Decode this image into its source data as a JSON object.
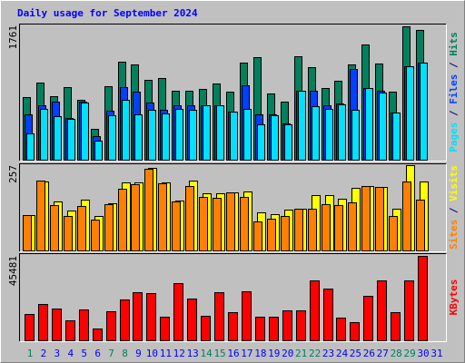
{
  "chart_data": [
    {
      "type": "bar",
      "title": "Daily usage for September 2024",
      "categories": [
        "1",
        "2",
        "3",
        "4",
        "5",
        "6",
        "7",
        "8",
        "9",
        "10",
        "11",
        "12",
        "13",
        "14",
        "15",
        "16",
        "17",
        "18",
        "19",
        "20",
        "21",
        "22",
        "23",
        "24",
        "25",
        "26",
        "27",
        "28",
        "29",
        "30",
        "31"
      ],
      "category_colors": [
        "#00805c",
        "#0000ff",
        "#0000ff",
        "#0000ff",
        "#0000ff",
        "#0000ff",
        "#00805c",
        "#00805c",
        "#0000ff",
        "#0000ff",
        "#0000ff",
        "#0000ff",
        "#0000ff",
        "#00805c",
        "#00805c",
        "#0000ff",
        "#0000ff",
        "#0000ff",
        "#0000ff",
        "#0000ff",
        "#00805c",
        "#00805c",
        "#0000ff",
        "#0000ff",
        "#0000ff",
        "#0000ff",
        "#0000ff",
        "#00805c",
        "#00805c",
        "#0000ff",
        "#0000ff"
      ],
      "legend_separator": "/",
      "ylim": [
        0,
        1761
      ],
      "yticks": [
        1761
      ],
      "series": [
        {
          "name": "Hits",
          "color": "#00805c",
          "values": [
            821,
            1011,
            833,
            952,
            780,
            404,
            964,
            1285,
            1250,
            1047,
            1071,
            904,
            904,
            928,
            1000,
            892,
            1273,
            1345,
            869,
            762,
            1357,
            1214,
            940,
            1035,
            1250,
            1511,
            1261,
            892,
            1749,
            1702,
            null
          ]
        },
        {
          "name": "Files",
          "color": "#0040ff",
          "values": [
            595,
            714,
            762,
            547,
            760,
            310,
            642,
            952,
            892,
            750,
            654,
            714,
            714,
            714,
            714,
            630,
            976,
            595,
            595,
            476,
            904,
            904,
            714,
            738,
            1190,
            940,
            904,
            619,
            1226,
            1273,
            null
          ]
        },
        {
          "name": "Pages",
          "color": "#00e0ff",
          "values": [
            345,
            666,
            571,
            535,
            750,
            250,
            583,
            785,
            595,
            654,
            607,
            666,
            654,
            714,
            714,
            630,
            666,
            464,
            583,
            464,
            904,
            702,
            666,
            726,
            654,
            940,
            880,
            619,
            1226,
            1273,
            null
          ]
        }
      ]
    },
    {
      "type": "bar",
      "legend_separator": "/",
      "ylim": [
        0,
        257
      ],
      "yticks": [
        257
      ],
      "series": [
        {
          "name": "Visits",
          "color": "#ffff00",
          "values": [
            106,
            207,
            147,
            120,
            153,
            104,
            142,
            205,
            205,
            249,
            205,
            150,
            210,
            172,
            172,
            175,
            178,
            115,
            109,
            123,
            126,
            167,
            167,
            156,
            189,
            194,
            191,
            126,
            257,
            207,
            null
          ]
        },
        {
          "name": "Sites",
          "color": "#ff8000",
          "values": [
            106,
            210,
            137,
            104,
            134,
            93,
            139,
            186,
            199,
            246,
            202,
            147,
            194,
            161,
            158,
            175,
            161,
            88,
            96,
            104,
            126,
            126,
            139,
            137,
            145,
            194,
            191,
            104,
            207,
            153,
            null
          ]
        }
      ]
    },
    {
      "type": "bar",
      "ylim": [
        0,
        45481
      ],
      "yticks": [
        45481
      ],
      "series": [
        {
          "name": "KBytes",
          "color": "#ff0000",
          "values": [
            14200,
            19600,
            17100,
            10800,
            16600,
            6400,
            15600,
            22000,
            25900,
            25400,
            12700,
            30800,
            22500,
            13200,
            25900,
            15200,
            26400,
            12700,
            12700,
            16100,
            16100,
            32300,
            27900,
            12200,
            9800,
            24000,
            32300,
            15200,
            32300,
            45481,
            null
          ]
        }
      ]
    }
  ]
}
